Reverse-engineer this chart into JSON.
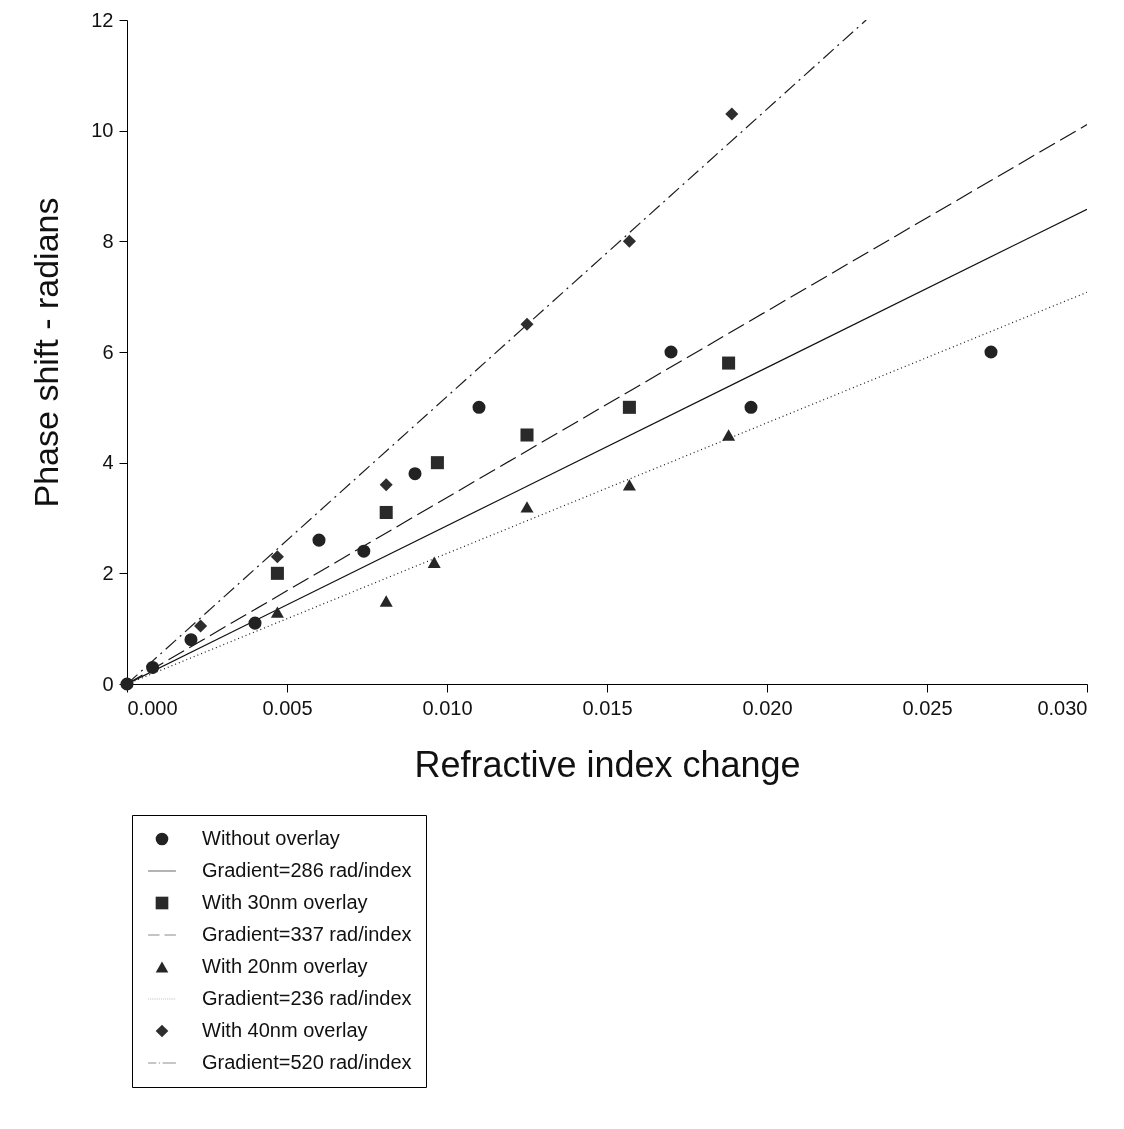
{
  "chart_data": {
    "type": "scatter",
    "xlabel": "Refractive index change",
    "ylabel": "Phase shift - radians",
    "xlim": [
      0,
      0.03
    ],
    "ylim": [
      0,
      12
    ],
    "xticks": [
      {
        "value": 0,
        "label": "0.000"
      },
      {
        "value": 0.005,
        "label": "0.005"
      },
      {
        "value": 0.01,
        "label": "0.010"
      },
      {
        "value": 0.015,
        "label": "0.015"
      },
      {
        "value": 0.02,
        "label": "0.020"
      },
      {
        "value": 0.025,
        "label": "0.025"
      },
      {
        "value": 0.03,
        "label": "0.030"
      }
    ],
    "yticks": [
      0,
      2,
      4,
      6,
      8,
      10,
      12
    ],
    "grid": false,
    "legend": "bottom",
    "series": [
      {
        "name": "Without overlay",
        "color": "#222222",
        "marker": "circle",
        "x": [
          0,
          0.0008,
          0.002,
          0.004,
          0.006,
          0.0074,
          0.009,
          0.011,
          0.017,
          0.0195,
          0.027
        ],
        "values": [
          0,
          0.3,
          0.8,
          1.1,
          2.6,
          2.4,
          3.8,
          5.0,
          6.0,
          5.0,
          6.0
        ]
      },
      {
        "type": "line",
        "name": "Gradient=286 rad/index",
        "color": "#111111",
        "line_style": "solid",
        "x": [
          0,
          0.03
        ],
        "values": [
          0,
          8.58
        ]
      },
      {
        "name": "With 30nm overlay",
        "color": "#2a2a2a",
        "marker": "square",
        "x": [
          0.0047,
          0.0081,
          0.0097,
          0.0125,
          0.0157,
          0.0188
        ],
        "values": [
          2.0,
          3.1,
          4.0,
          4.5,
          5.0,
          5.8
        ]
      },
      {
        "type": "line",
        "name": "Gradient=337 rad/index",
        "color": "#141414",
        "line_style": "dashed",
        "x": [
          0,
          0.03
        ],
        "values": [
          0,
          10.11
        ]
      },
      {
        "name": "With 20nm overlay",
        "color": "#262626",
        "marker": "triangle",
        "x": [
          0.0047,
          0.0081,
          0.0096,
          0.0125,
          0.0157,
          0.0188
        ],
        "values": [
          1.3,
          1.5,
          2.2,
          3.2,
          3.6,
          4.5
        ]
      },
      {
        "type": "line",
        "name": "Gradient=236 rad/index",
        "color": "#181818",
        "line_style": "dotted",
        "x": [
          0,
          0.03
        ],
        "values": [
          0,
          7.08
        ]
      },
      {
        "name": "With 40nm overlay",
        "color": "#2e2e2e",
        "marker": "diamond",
        "x": [
          0.0023,
          0.0047,
          0.0081,
          0.0125,
          0.0157,
          0.0189
        ],
        "values": [
          1.05,
          2.3,
          3.6,
          6.5,
          8.0,
          10.3
        ]
      },
      {
        "type": "line",
        "name": "Gradient=520 rad/index",
        "color": "#1c1c1c",
        "line_style": "dashdot",
        "x": [
          0,
          0.0231
        ],
        "values": [
          0,
          12.0
        ]
      }
    ]
  }
}
